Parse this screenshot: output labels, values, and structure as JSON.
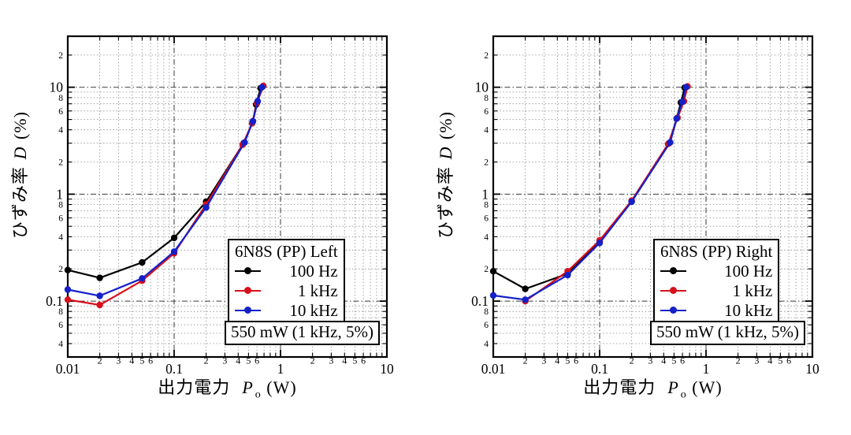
{
  "axis": {
    "x_major_ticks": [
      "0.01",
      "0.1",
      "1",
      "10"
    ],
    "x_minor_ticks": [
      "2",
      "3",
      "4",
      "5",
      "6"
    ],
    "y_major_ticks": [
      "0.1",
      "1",
      "10"
    ],
    "y_minor_ticks": [
      "2",
      "4",
      "6",
      "8"
    ],
    "xlabel_text": "出力電力",
    "xlabel_var": "P",
    "xlabel_sub": "o",
    "xlabel_unit": "(W)",
    "ylabel_text": "ひずみ率",
    "ylabel_var": "D",
    "ylabel_unit": "(%)"
  },
  "chart_data": [
    {
      "type": "line",
      "legend_title": "6N8S (PP) Left",
      "annotation": "550 mW (1 kHz, 5%)",
      "xlabel": "出力電力 Po (W)",
      "ylabel": "ひずみ率 D (%)",
      "xscale": "log",
      "yscale": "log",
      "xlim": [
        0.01,
        10
      ],
      "ylim": [
        0.03,
        30
      ],
      "grid": true,
      "legend_position": "lower-right",
      "series": [
        {
          "name": "100 Hz",
          "color": "#000000",
          "points": [
            [
              0.01,
              0.195
            ],
            [
              0.02,
              0.165
            ],
            [
              0.05,
              0.23
            ],
            [
              0.1,
              0.39
            ],
            [
              0.2,
              0.85
            ],
            [
              0.45,
              3.0
            ],
            [
              0.55,
              4.8
            ],
            [
              0.59,
              6.9
            ],
            [
              0.65,
              9.8
            ]
          ]
        },
        {
          "name": "1 kHz",
          "color": "#d8101c",
          "points": [
            [
              0.01,
              0.103
            ],
            [
              0.02,
              0.092
            ],
            [
              0.05,
              0.155
            ],
            [
              0.1,
              0.28
            ],
            [
              0.2,
              0.8
            ],
            [
              0.44,
              2.9
            ],
            [
              0.54,
              4.6
            ],
            [
              0.6,
              7.1
            ],
            [
              0.69,
              10.3
            ]
          ]
        },
        {
          "name": "10 kHz",
          "color": "#1420c8",
          "points": [
            [
              0.01,
              0.128
            ],
            [
              0.02,
              0.112
            ],
            [
              0.05,
              0.163
            ],
            [
              0.1,
              0.29
            ],
            [
              0.2,
              0.75
            ],
            [
              0.46,
              3.05
            ],
            [
              0.55,
              4.8
            ],
            [
              0.61,
              7.4
            ],
            [
              0.67,
              10.0
            ]
          ]
        }
      ]
    },
    {
      "type": "line",
      "legend_title": "6N8S (PP) Right",
      "annotation": "550 mW (1 kHz, 5%)",
      "xlabel": "出力電力 Po (W)",
      "ylabel": "ひずみ率 D (%)",
      "xscale": "log",
      "yscale": "log",
      "xlim": [
        0.01,
        10
      ],
      "ylim": [
        0.03,
        30
      ],
      "grid": true,
      "legend_position": "lower-right",
      "series": [
        {
          "name": "100 Hz",
          "color": "#000000",
          "points": [
            [
              0.01,
              0.19
            ],
            [
              0.02,
              0.13
            ],
            [
              0.05,
              0.18
            ],
            [
              0.1,
              0.36
            ],
            [
              0.2,
              0.86
            ],
            [
              0.45,
              3.0
            ],
            [
              0.53,
              5.1
            ],
            [
              0.58,
              7.2
            ],
            [
              0.63,
              9.9
            ]
          ]
        },
        {
          "name": "1 kHz",
          "color": "#d8101c",
          "points": [
            [
              0.02,
              0.1
            ],
            [
              0.05,
              0.19
            ],
            [
              0.1,
              0.37
            ],
            [
              0.2,
              0.87
            ],
            [
              0.44,
              2.95
            ],
            [
              0.54,
              5.2
            ],
            [
              0.62,
              7.4
            ],
            [
              0.67,
              10.2
            ]
          ]
        },
        {
          "name": "10 kHz",
          "color": "#1420c8",
          "points": [
            [
              0.01,
              0.113
            ],
            [
              0.02,
              0.103
            ],
            [
              0.05,
              0.175
            ],
            [
              0.1,
              0.35
            ],
            [
              0.2,
              0.85
            ],
            [
              0.46,
              3.05
            ],
            [
              0.53,
              5.1
            ],
            [
              0.6,
              7.3
            ],
            [
              0.65,
              10.0
            ]
          ]
        }
      ]
    }
  ]
}
